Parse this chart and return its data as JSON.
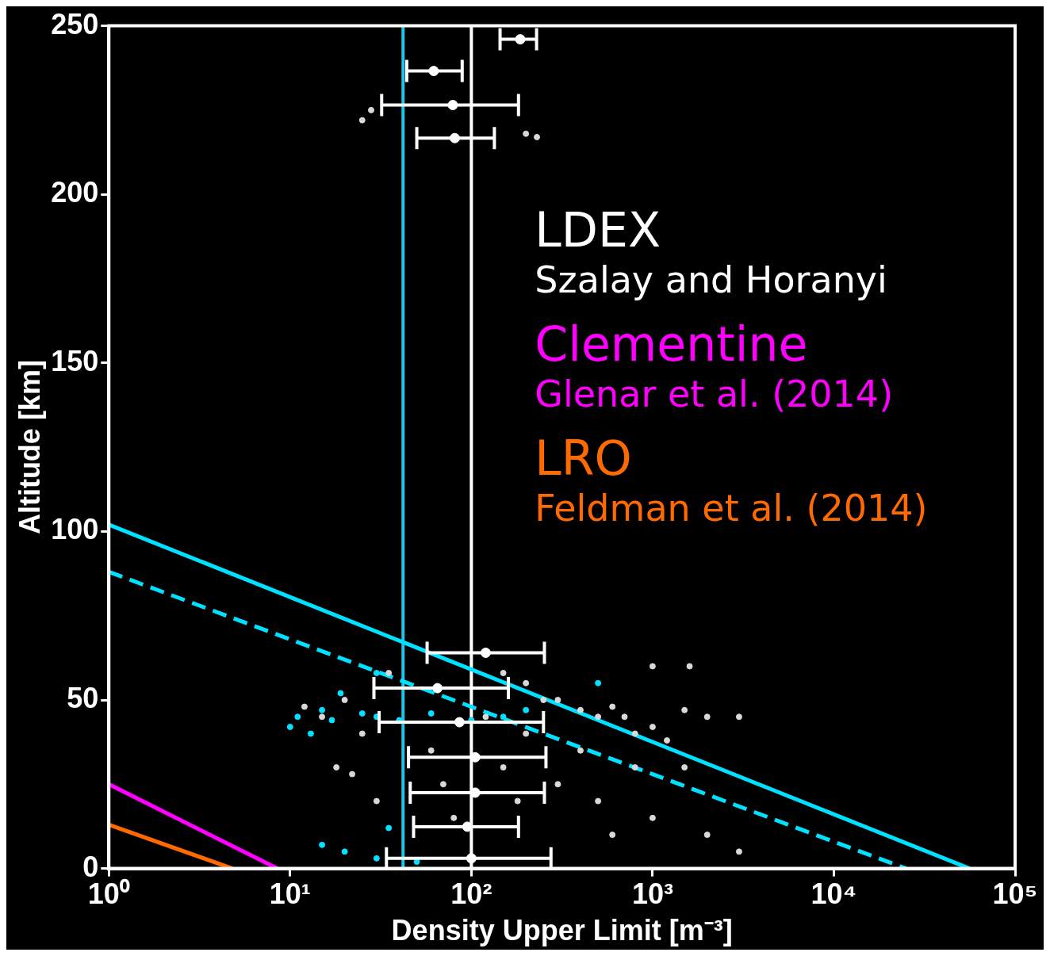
{
  "chart_data": {
    "type": "scatter",
    "xlabel": "Density Upper Limit [m⁻³]",
    "ylabel": "Altitude [km]",
    "log": "x",
    "legend": "right",
    "xlim": [
      1,
      100000
    ],
    "ylim": [
      0,
      250
    ],
    "xticks": [
      {
        "value": 1,
        "label": "10⁰"
      },
      {
        "value": 10,
        "label": "10¹"
      },
      {
        "value": 100,
        "label": "10²"
      },
      {
        "value": 1000,
        "label": "10³"
      },
      {
        "value": 10000,
        "label": "10⁴"
      },
      {
        "value": 100000,
        "label": "10⁵"
      }
    ],
    "yticks": [
      0,
      50,
      100,
      150,
      200,
      250
    ],
    "ref_lines": [
      {
        "axis": "x",
        "value": 42,
        "color": "#20c4e8"
      },
      {
        "axis": "x",
        "value": 100,
        "color": "#ffffff"
      }
    ],
    "series": [
      {
        "color": "#d8d8d8",
        "x": [
          15,
          20,
          25,
          12,
          18,
          22,
          30,
          35,
          150,
          200,
          300,
          400,
          500,
          600,
          700,
          800,
          1000,
          1200,
          1500,
          2000,
          3000,
          1500,
          800,
          400,
          300,
          500,
          1000,
          2000,
          600,
          3000,
          200,
          150,
          60,
          70,
          80,
          120,
          180,
          250,
          1000,
          1600,
          25,
          28,
          200,
          230
        ],
        "values": [
          45,
          50,
          40,
          48,
          30,
          28,
          20,
          58,
          58,
          55,
          50,
          47,
          45,
          48,
          45,
          40,
          42,
          38,
          47,
          45,
          45,
          30,
          30,
          35,
          25,
          20,
          15,
          10,
          10,
          5,
          40,
          30,
          35,
          25,
          15,
          45,
          20,
          50,
          60,
          60,
          222,
          225,
          218,
          217
        ]
      },
      {
        "color": "#00e0ff",
        "x": [
          10,
          11,
          13,
          15,
          17,
          19,
          25,
          30,
          40,
          60,
          100,
          150,
          200,
          30,
          500,
          15,
          20,
          30,
          50,
          35
        ],
        "values": [
          42,
          45,
          40,
          47,
          44,
          52,
          46,
          45,
          44,
          46,
          44,
          45,
          47,
          58,
          55,
          7,
          5,
          3,
          2,
          12
        ]
      },
      {
        "name": "LDEX\nSzalay and Horanyi",
        "color": "#ffffff",
        "marker": "circle",
        "x": [
          186,
          62,
          79,
          81,
          120,
          65,
          86,
          105,
          105,
          95,
          100
        ],
        "values": [
          246,
          236.6,
          226.5,
          216.7,
          64,
          53.5,
          43.4,
          33,
          22.5,
          12.4,
          3
        ],
        "xerrors": [
          [
            144,
            229
          ],
          [
            44,
            89
          ],
          [
            32,
            182
          ],
          [
            50,
            134
          ],
          [
            57,
            253
          ],
          [
            29,
            160
          ],
          [
            31,
            250
          ],
          [
            45,
            258
          ],
          [
            46,
            253
          ],
          [
            48,
            182
          ],
          [
            34,
            275
          ]
        ]
      },
      {
        "type": "line",
        "color": "#00e0ff",
        "x": [
          1,
          56000
        ],
        "values": [
          102,
          0
        ]
      },
      {
        "type": "line",
        "color": "#00e0ff",
        "line_style": "dashed",
        "x": [
          1,
          25000
        ],
        "values": [
          88,
          0
        ]
      },
      {
        "type": "line",
        "name": "Clementine\nGlenar et al. (2014)",
        "color": "#ff00ff",
        "x": [
          1,
          8.5
        ],
        "values": [
          25,
          0
        ]
      },
      {
        "type": "line",
        "name": "LRO\nFeldman et al. (2014)",
        "color": "#ff6a00",
        "x": [
          1,
          4.8
        ],
        "values": [
          13,
          0
        ]
      }
    ]
  }
}
